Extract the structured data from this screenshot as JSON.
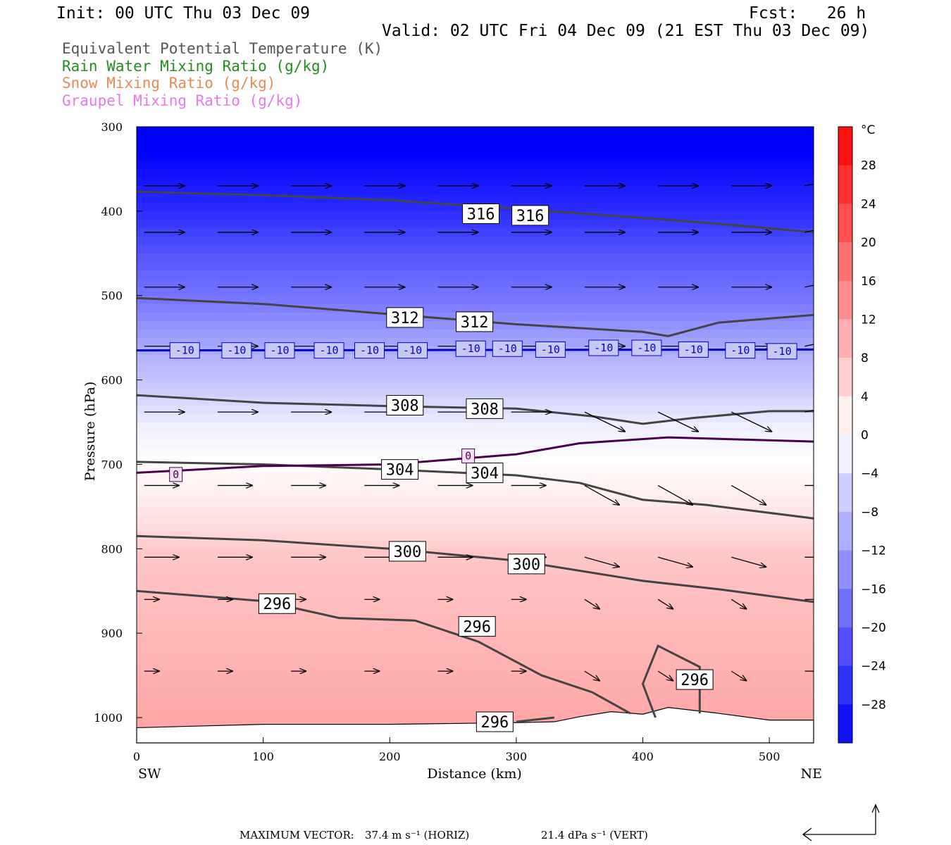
{
  "header": {
    "init": "Init: 00 UTC Thu 03 Dec 09",
    "fcst": "Fcst:   26 h",
    "valid": "Valid: 02 UTC Fri 04 Dec 09 (21 EST Thu 03 Dec 09)"
  },
  "legend": [
    {
      "label": "Equivalent Potential Temperature (K)",
      "color": "#555555"
    },
    {
      "label": "Rain Water Mixing Ratio (g/kg)",
      "color": "#228b22"
    },
    {
      "label": "Snow Mixing Ratio (g/kg)",
      "color": "#e98a52"
    },
    {
      "label": "Graupel Mixing Ratio (g/kg)",
      "color": "#e57ae5"
    }
  ],
  "footer": {
    "max_vector_label": "MAXIMUM VECTOR:",
    "horiz": "37.4 m s⁻¹ (HORIZ)",
    "vert": "21.4 dPa s⁻¹ (VERT)"
  },
  "chart_data": {
    "type": "cross-section",
    "xlabel": "Distance (km)",
    "ylabel": "Pressure (hPa)",
    "xlim": [
      0,
      535
    ],
    "ylim": [
      1030,
      300
    ],
    "x_ticks": [
      0,
      100,
      200,
      300,
      400,
      500
    ],
    "y_ticks": [
      300,
      400,
      500,
      600,
      700,
      800,
      900,
      1000
    ],
    "endpoint_left": "SW",
    "endpoint_right": "NE",
    "colorbar": {
      "unit": "°C",
      "min": -32,
      "max": 32,
      "step": 4,
      "labels": [
        28,
        24,
        20,
        16,
        12,
        8,
        4,
        0,
        -4,
        -8,
        -12,
        -16,
        -20,
        -24,
        -28
      ]
    },
    "temperature_shading": [
      {
        "p": 300,
        "t": -34
      },
      {
        "p": 400,
        "t": -26
      },
      {
        "p": 450,
        "t": -21
      },
      {
        "p": 500,
        "t": -17
      },
      {
        "p": 565,
        "t": -10
      },
      {
        "p": 600,
        "t": -7
      },
      {
        "p": 650,
        "t": -2
      },
      {
        "p": 690,
        "t": 0
      },
      {
        "p": 750,
        "t": 3
      },
      {
        "p": 800,
        "t": 7
      },
      {
        "p": 900,
        "t": 9
      },
      {
        "p": 1000,
        "t": 11
      }
    ],
    "theta_e_contours": [
      {
        "value": 316,
        "label": "316",
        "points": [
          [
            0,
            377
          ],
          [
            100,
            381
          ],
          [
            200,
            387
          ],
          [
            300,
            397
          ],
          [
            400,
            408
          ],
          [
            460,
            415
          ],
          [
            535,
            425
          ]
        ],
        "label_at": [
          [
            272,
            403
          ],
          [
            311,
            405
          ]
        ]
      },
      {
        "value": 312,
        "label": "312",
        "points": [
          [
            0,
            503
          ],
          [
            100,
            510
          ],
          [
            200,
            522
          ],
          [
            300,
            534
          ],
          [
            400,
            543
          ],
          [
            420,
            548
          ],
          [
            460,
            532
          ],
          [
            535,
            523
          ]
        ],
        "label_at": [
          [
            212,
            526
          ],
          [
            267,
            531
          ]
        ]
      },
      {
        "value": 308,
        "label": "308",
        "points": [
          [
            0,
            618
          ],
          [
            100,
            627
          ],
          [
            200,
            631
          ],
          [
            300,
            634
          ],
          [
            360,
            643
          ],
          [
            400,
            652
          ],
          [
            440,
            645
          ],
          [
            500,
            637
          ],
          [
            535,
            637
          ]
        ],
        "label_at": [
          [
            212,
            630
          ],
          [
            275,
            634
          ]
        ]
      },
      {
        "value": 304,
        "label": "304",
        "points": [
          [
            0,
            697
          ],
          [
            100,
            700
          ],
          [
            200,
            706
          ],
          [
            300,
            713
          ],
          [
            350,
            722
          ],
          [
            400,
            742
          ],
          [
            450,
            748
          ],
          [
            535,
            764
          ]
        ],
        "label_at": [
          [
            208,
            706
          ],
          [
            275,
            710
          ]
        ]
      },
      {
        "value": 300,
        "label": "300",
        "points": [
          [
            0,
            785
          ],
          [
            100,
            790
          ],
          [
            200,
            800
          ],
          [
            300,
            814
          ],
          [
            400,
            838
          ],
          [
            460,
            848
          ],
          [
            535,
            863
          ]
        ],
        "label_at": [
          [
            214,
            803
          ],
          [
            308,
            818
          ]
        ]
      },
      {
        "value": 296,
        "label": "296",
        "points": [
          [
            0,
            850
          ],
          [
            100,
            862
          ],
          [
            160,
            882
          ],
          [
            220,
            885
          ],
          [
            270,
            910
          ],
          [
            320,
            950
          ],
          [
            360,
            970
          ],
          [
            390,
            995
          ]
        ],
        "label_at": [
          [
            111,
            865
          ],
          [
            269,
            892
          ]
        ]
      },
      {
        "value": 296,
        "label": "296",
        "points": [
          [
            410,
            1000
          ],
          [
            400,
            960
          ],
          [
            412,
            915
          ],
          [
            445,
            940
          ],
          [
            445,
            995
          ]
        ],
        "label_at": [
          [
            441,
            955
          ]
        ]
      },
      {
        "value": 296,
        "label": "296",
        "points": [
          [
            300,
            1005
          ],
          [
            330,
            1000
          ]
        ],
        "label_at": [
          [
            283,
            1005
          ]
        ]
      }
    ],
    "temperature_contours": [
      {
        "value": -10,
        "label": "-10",
        "color": "#0000cd",
        "points": [
          [
            0,
            565
          ],
          [
            535,
            564
          ]
        ],
        "label_at": [
          [
            38,
            565
          ],
          [
            79,
            565
          ],
          [
            113,
            565
          ],
          [
            152,
            565
          ],
          [
            184,
            565
          ],
          [
            218,
            565
          ],
          [
            264,
            563
          ],
          [
            293,
            563
          ],
          [
            327,
            564
          ],
          [
            369,
            562
          ],
          [
            403,
            562
          ],
          [
            440,
            564
          ],
          [
            477,
            565
          ],
          [
            510,
            566
          ]
        ]
      },
      {
        "value": 0,
        "label": "0",
        "color": "#4b0050",
        "points": [
          [
            0,
            710
          ],
          [
            100,
            702
          ],
          [
            200,
            700
          ],
          [
            300,
            688
          ],
          [
            350,
            675
          ],
          [
            420,
            668
          ],
          [
            535,
            673
          ]
        ],
        "label_at": [
          [
            31,
            712
          ],
          [
            262,
            690
          ]
        ]
      }
    ],
    "surface_pressure": [
      [
        0,
        1012
      ],
      [
        100,
        1008
      ],
      [
        200,
        1008
      ],
      [
        300,
        1006
      ],
      [
        330,
        1005
      ],
      [
        350,
        999
      ],
      [
        375,
        993
      ],
      [
        400,
        996
      ],
      [
        420,
        988
      ],
      [
        460,
        995
      ],
      [
        500,
        1003
      ],
      [
        535,
        1003
      ]
    ],
    "wind_rows_hPa": [
      370,
      425,
      490,
      560,
      638,
      725,
      810,
      860,
      945
    ]
  }
}
